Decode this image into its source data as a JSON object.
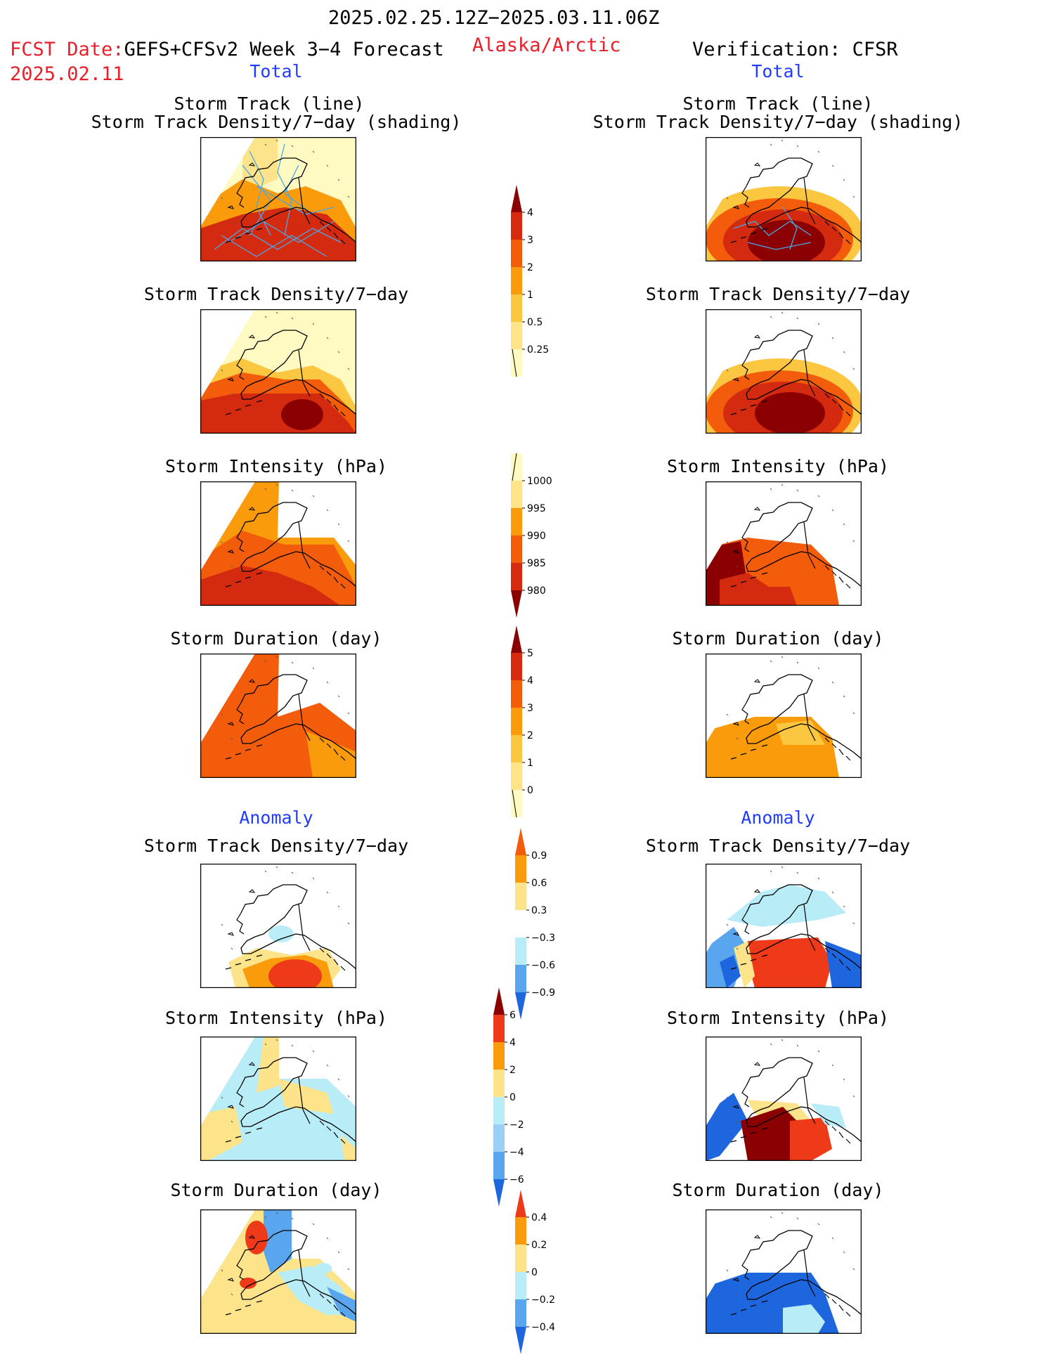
{
  "header": {
    "period": "2025.02.25.12Z−2025.03.11.06Z",
    "fcst_prefix": "FCST Date:",
    "fcst_model": "GEFS+CFSv2 Week 3−4 Forecast",
    "fcst_date": "2025.02.11",
    "region": "Alaska/Arctic",
    "verification": "Verification: CFSR"
  },
  "sections": {
    "total": "Total",
    "anomaly": "Anomaly"
  },
  "titles": {
    "track_line": "Storm Track (line)",
    "track_shading": "Storm Track Density/7−day (shading)",
    "density": "Storm Track Density/7−day",
    "intensity": "Storm Intensity (hPa)",
    "duration": "Storm Duration (day)"
  },
  "colorbars": {
    "density_total": {
      "ticks": [
        "4",
        "3",
        "2",
        "1",
        "0.5",
        "0.25"
      ],
      "colors": [
        "#8b0000",
        "#d42a10",
        "#f25c0a",
        "#f99b0a",
        "#fbc640",
        "#fde48a",
        "#fff9c2"
      ]
    },
    "intensity_total": {
      "ticks": [
        "1000",
        "995",
        "990",
        "985",
        "980"
      ],
      "colors": [
        "#fff9c2",
        "#fde48a",
        "#f99b0a",
        "#f25c0a",
        "#d42a10",
        "#8b0000"
      ]
    },
    "duration_total": {
      "ticks": [
        "5",
        "4",
        "3",
        "2",
        "1",
        "0"
      ],
      "colors": [
        "#8b0000",
        "#d42a10",
        "#f25c0a",
        "#f99b0a",
        "#fbc640",
        "#fde48a",
        "#fff9c2"
      ]
    },
    "density_anom": {
      "ticks": [
        "0.9",
        "0.6",
        "0.3",
        "−0.3",
        "−0.6",
        "−0.9"
      ],
      "colors": [
        "#f25c0a",
        "#f99b0a",
        "#fde48a",
        "#ffffff",
        "#b8ecf7",
        "#5aa6ee",
        "#1e66dd"
      ]
    },
    "intensity_anom": {
      "ticks": [
        "6",
        "4",
        "2",
        "0",
        "−2",
        "−4",
        "−6"
      ],
      "colors": [
        "#8b0000",
        "#ef3a1a",
        "#f99b0a",
        "#fde48a",
        "#b8ecf7",
        "#9ccff4",
        "#5aa6ee",
        "#1e66dd"
      ]
    },
    "duration_anom": {
      "ticks": [
        "0.4",
        "0.2",
        "0",
        "−0.2",
        "−0.4"
      ],
      "colors": [
        "#ef3a1a",
        "#f99b0a",
        "#fde48a",
        "#b8ecf7",
        "#5aa6ee",
        "#1e66dd"
      ]
    }
  }
}
